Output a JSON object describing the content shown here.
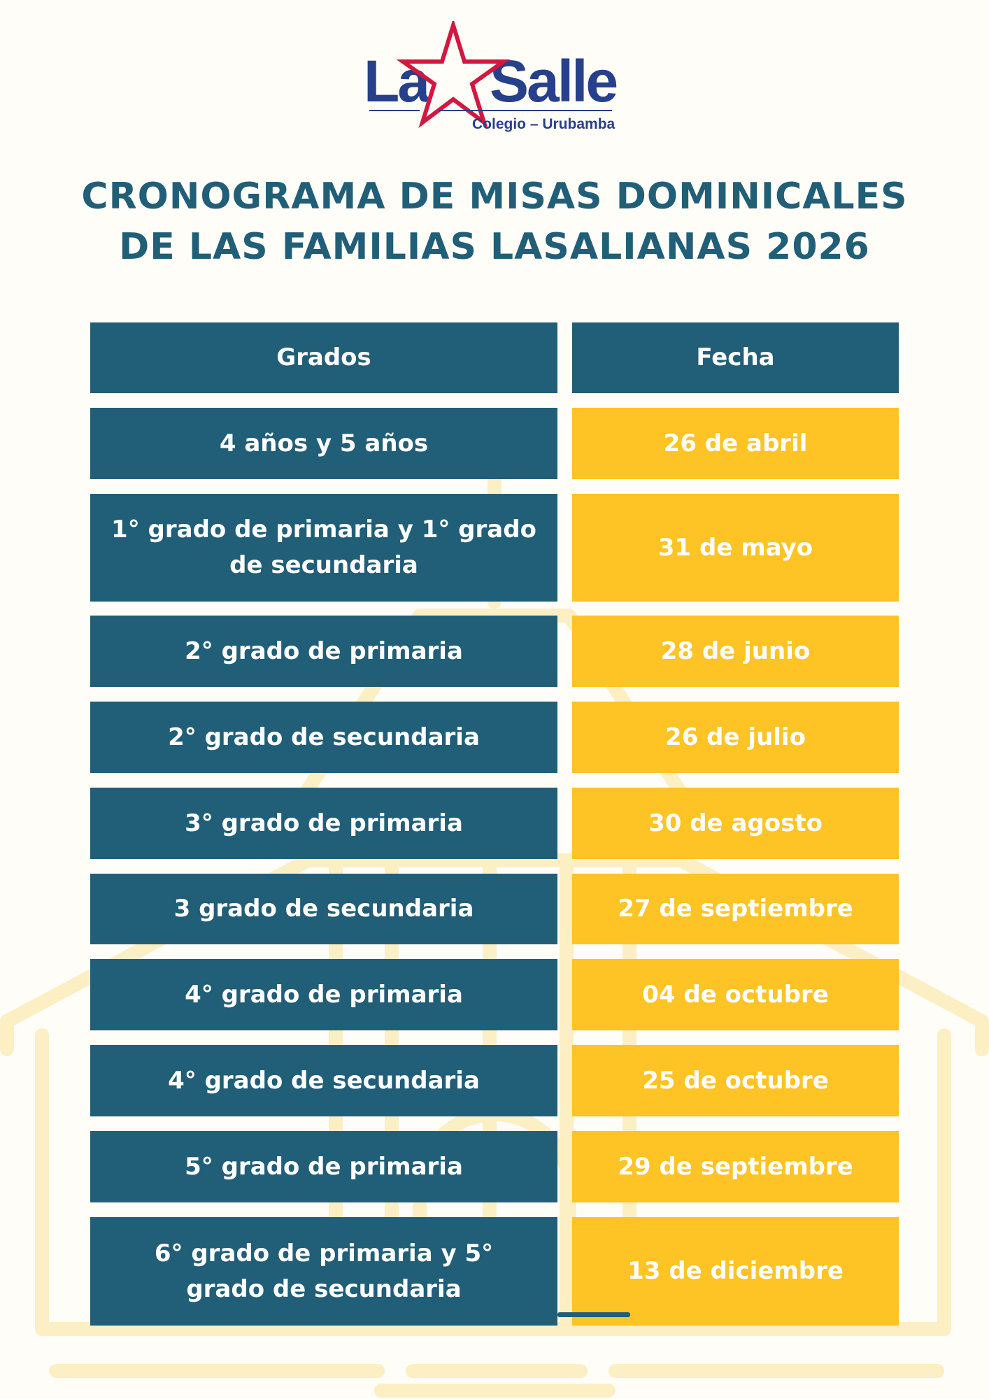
{
  "logo": {
    "brand_left": "La",
    "brand_right": "Salle",
    "subtitle": "Colegio – Urubamba"
  },
  "title": {
    "line1": "CRONOGRAMA DE MISAS DOMINICALES",
    "line2": "DE LAS FAMILIAS LASALIANAS 2026"
  },
  "colors": {
    "primary": "#215e78",
    "accent": "#fec324",
    "logo_blue": "#27408b",
    "logo_red": "#d4173f"
  },
  "table": {
    "headers": [
      "Grados",
      "Fecha"
    ],
    "rows": [
      {
        "grado": "4 años y 5 años",
        "fecha": "26 de abril"
      },
      {
        "grado": "1° grado de primaria y 1° grado de secundaria",
        "fecha": "31 de mayo"
      },
      {
        "grado": "2° grado de primaria",
        "fecha": "28 de junio"
      },
      {
        "grado": "2° grado de secundaria",
        "fecha": "26 de julio"
      },
      {
        "grado": "3° grado de primaria",
        "fecha": "30 de agosto"
      },
      {
        "grado": "3 grado de secundaria",
        "fecha": "27 de septiembre"
      },
      {
        "grado": "4° grado de primaria",
        "fecha": "04 de octubre"
      },
      {
        "grado": "4° grado de secundaria",
        "fecha": "25 de octubre"
      },
      {
        "grado": "5° grado de primaria",
        "fecha": "29 de septiembre"
      },
      {
        "grado": "6° grado de primaria y 5° grado de secundaria",
        "fecha": "13 de diciembre"
      }
    ]
  }
}
